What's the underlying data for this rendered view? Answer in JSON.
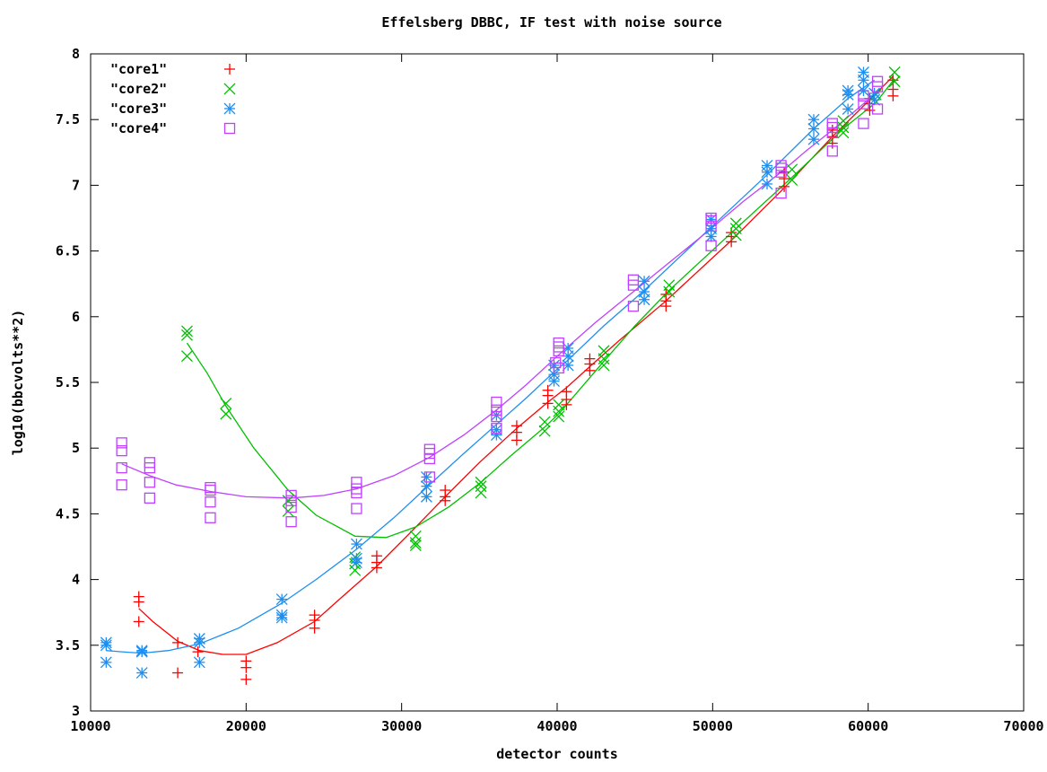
{
  "chart_data": {
    "type": "scatter",
    "title": "Effelsberg DBBC, IF test with noise source",
    "xlabel": "detector counts",
    "ylabel": "log10(bbcvolts**2)",
    "xlim": [
      10000,
      70000
    ],
    "ylim": [
      3,
      8
    ],
    "x_ticks": [
      "10000",
      "20000",
      "30000",
      "40000",
      "50000",
      "60000",
      "70000"
    ],
    "y_ticks": [
      "3",
      "3.5",
      "4",
      "4.5",
      "5",
      "5.5",
      "6",
      "6.5",
      "7",
      "7.5",
      "8"
    ],
    "legend_position": "top-left",
    "series": [
      {
        "name": "\"core1\"",
        "color": "#ff0000",
        "marker": "plus",
        "points": [
          [
            13100,
            3.87
          ],
          [
            13100,
            3.83
          ],
          [
            13100,
            3.68
          ],
          [
            15600,
            3.52
          ],
          [
            15600,
            3.29
          ],
          [
            16900,
            3.45
          ],
          [
            20000,
            3.38
          ],
          [
            20000,
            3.33
          ],
          [
            20000,
            3.24
          ],
          [
            24400,
            3.73
          ],
          [
            24400,
            3.69
          ],
          [
            24400,
            3.63
          ],
          [
            28400,
            4.18
          ],
          [
            28400,
            4.13
          ],
          [
            28400,
            4.09
          ],
          [
            32800,
            4.68
          ],
          [
            32800,
            4.63
          ],
          [
            32800,
            4.6
          ],
          [
            37400,
            5.17
          ],
          [
            37400,
            5.12
          ],
          [
            37400,
            5.06
          ],
          [
            39400,
            5.44
          ],
          [
            39400,
            5.4
          ],
          [
            39400,
            5.34
          ],
          [
            40600,
            5.43
          ],
          [
            40600,
            5.37
          ],
          [
            40600,
            5.33
          ],
          [
            42100,
            5.68
          ],
          [
            42100,
            5.64
          ],
          [
            42100,
            5.59
          ],
          [
            47000,
            6.17
          ],
          [
            47000,
            6.12
          ],
          [
            47000,
            6.08
          ],
          [
            51200,
            6.64
          ],
          [
            51200,
            6.61
          ],
          [
            51200,
            6.57
          ],
          [
            54600,
            7.1
          ],
          [
            54600,
            7.05
          ],
          [
            54600,
            6.99
          ],
          [
            57700,
            7.42
          ],
          [
            57700,
            7.37
          ],
          [
            57700,
            7.32
          ],
          [
            60100,
            7.66
          ],
          [
            60100,
            7.62
          ],
          [
            60100,
            7.57
          ],
          [
            61600,
            7.8
          ],
          [
            61600,
            7.73
          ],
          [
            61600,
            7.68
          ]
        ],
        "curve": [
          [
            13100,
            3.78
          ],
          [
            14000,
            3.68
          ],
          [
            15600,
            3.53
          ],
          [
            17000,
            3.46
          ],
          [
            18500,
            3.43
          ],
          [
            20000,
            3.43
          ],
          [
            22000,
            3.52
          ],
          [
            24400,
            3.68
          ],
          [
            26000,
            3.85
          ],
          [
            28400,
            4.1
          ],
          [
            30500,
            4.35
          ],
          [
            32800,
            4.63
          ],
          [
            35000,
            4.89
          ],
          [
            37400,
            5.15
          ],
          [
            39400,
            5.35
          ],
          [
            40600,
            5.46
          ],
          [
            42100,
            5.62
          ],
          [
            44000,
            5.82
          ],
          [
            47000,
            6.12
          ],
          [
            51200,
            6.58
          ],
          [
            54600,
            6.98
          ],
          [
            57700,
            7.37
          ],
          [
            60100,
            7.65
          ],
          [
            61600,
            7.83
          ]
        ]
      },
      {
        "name": "\"core2\"",
        "color": "#00c000",
        "marker": "cross",
        "points": [
          [
            16200,
            5.89
          ],
          [
            16200,
            5.86
          ],
          [
            16200,
            5.7
          ],
          [
            18700,
            5.34
          ],
          [
            18700,
            5.26
          ],
          [
            22700,
            4.6
          ],
          [
            22700,
            4.52
          ],
          [
            27000,
            4.17
          ],
          [
            27000,
            4.12
          ],
          [
            27000,
            4.07
          ],
          [
            30900,
            4.33
          ],
          [
            30900,
            4.28
          ],
          [
            30900,
            4.26
          ],
          [
            35100,
            4.74
          ],
          [
            35100,
            4.71
          ],
          [
            35100,
            4.66
          ],
          [
            39200,
            5.2
          ],
          [
            39200,
            5.13
          ],
          [
            40100,
            5.33
          ],
          [
            40100,
            5.28
          ],
          [
            40100,
            5.24
          ],
          [
            43000,
            5.74
          ],
          [
            43000,
            5.68
          ],
          [
            43000,
            5.63
          ],
          [
            47200,
            6.24
          ],
          [
            47200,
            6.19
          ],
          [
            51500,
            6.71
          ],
          [
            51500,
            6.67
          ],
          [
            51500,
            6.62
          ],
          [
            55100,
            7.12
          ],
          [
            55100,
            7.04
          ],
          [
            58400,
            7.49
          ],
          [
            58400,
            7.44
          ],
          [
            58400,
            7.4
          ],
          [
            61700,
            7.86
          ],
          [
            61700,
            7.79
          ],
          [
            60500,
            7.69
          ]
        ],
        "curve": [
          [
            16200,
            5.8
          ],
          [
            17500,
            5.57
          ],
          [
            18700,
            5.32
          ],
          [
            20500,
            5.0
          ],
          [
            22700,
            4.68
          ],
          [
            24500,
            4.49
          ],
          [
            27000,
            4.33
          ],
          [
            29000,
            4.32
          ],
          [
            30900,
            4.4
          ],
          [
            33000,
            4.55
          ],
          [
            35100,
            4.74
          ],
          [
            37000,
            4.94
          ],
          [
            39200,
            5.16
          ],
          [
            40100,
            5.26
          ],
          [
            43000,
            5.66
          ],
          [
            45000,
            5.93
          ],
          [
            47200,
            6.2
          ],
          [
            51500,
            6.67
          ],
          [
            55100,
            7.06
          ],
          [
            58400,
            7.43
          ],
          [
            60500,
            7.63
          ],
          [
            61700,
            7.81
          ]
        ]
      },
      {
        "name": "\"core3\"",
        "color": "#1e8ff0",
        "marker": "star",
        "points": [
          [
            11000,
            3.52
          ],
          [
            11000,
            3.5
          ],
          [
            11000,
            3.37
          ],
          [
            13300,
            3.46
          ],
          [
            13300,
            3.45
          ],
          [
            13300,
            3.29
          ],
          [
            17000,
            3.55
          ],
          [
            17000,
            3.52
          ],
          [
            17000,
            3.37
          ],
          [
            22300,
            3.85
          ],
          [
            22300,
            3.73
          ],
          [
            22300,
            3.71
          ],
          [
            27100,
            4.27
          ],
          [
            27100,
            4.16
          ],
          [
            27100,
            4.13
          ],
          [
            31600,
            4.78
          ],
          [
            31600,
            4.71
          ],
          [
            31600,
            4.63
          ],
          [
            36100,
            5.25
          ],
          [
            36100,
            5.14
          ],
          [
            36100,
            5.1
          ],
          [
            39800,
            5.63
          ],
          [
            39800,
            5.56
          ],
          [
            39800,
            5.51
          ],
          [
            40700,
            5.76
          ],
          [
            40700,
            5.7
          ],
          [
            40700,
            5.63
          ],
          [
            45600,
            6.27
          ],
          [
            45600,
            6.19
          ],
          [
            45600,
            6.13
          ],
          [
            49900,
            6.74
          ],
          [
            49900,
            6.67
          ],
          [
            49900,
            6.61
          ],
          [
            53500,
            7.15
          ],
          [
            53500,
            7.1
          ],
          [
            53500,
            7.01
          ],
          [
            56500,
            7.5
          ],
          [
            56500,
            7.43
          ],
          [
            56500,
            7.35
          ],
          [
            58700,
            7.72
          ],
          [
            58700,
            7.69
          ],
          [
            58700,
            7.58
          ],
          [
            59700,
            7.86
          ],
          [
            59700,
            7.8
          ],
          [
            59700,
            7.72
          ],
          [
            60400,
            7.7
          ],
          [
            60400,
            7.65
          ]
        ],
        "curve": [
          [
            11000,
            3.46
          ],
          [
            12000,
            3.45
          ],
          [
            13300,
            3.44
          ],
          [
            15000,
            3.46
          ],
          [
            17000,
            3.51
          ],
          [
            19500,
            3.63
          ],
          [
            22300,
            3.82
          ],
          [
            24500,
            4.0
          ],
          [
            27100,
            4.23
          ],
          [
            29500,
            4.47
          ],
          [
            31600,
            4.7
          ],
          [
            34000,
            4.96
          ],
          [
            36100,
            5.18
          ],
          [
            38000,
            5.38
          ],
          [
            39800,
            5.58
          ],
          [
            40700,
            5.67
          ],
          [
            43000,
            5.93
          ],
          [
            45600,
            6.2
          ],
          [
            49900,
            6.68
          ],
          [
            53500,
            7.08
          ],
          [
            56500,
            7.43
          ],
          [
            58700,
            7.66
          ],
          [
            60400,
            7.8
          ]
        ]
      },
      {
        "name": "\"core4\"",
        "color": "#c040ff",
        "marker": "square",
        "points": [
          [
            12000,
            5.04
          ],
          [
            12000,
            4.98
          ],
          [
            12000,
            4.85
          ],
          [
            12000,
            4.72
          ],
          [
            13800,
            4.89
          ],
          [
            13800,
            4.85
          ],
          [
            13800,
            4.74
          ],
          [
            13800,
            4.62
          ],
          [
            17700,
            4.7
          ],
          [
            17700,
            4.68
          ],
          [
            17700,
            4.59
          ],
          [
            17700,
            4.47
          ],
          [
            22900,
            4.64
          ],
          [
            22900,
            4.6
          ],
          [
            22900,
            4.55
          ],
          [
            22900,
            4.44
          ],
          [
            27100,
            4.74
          ],
          [
            27100,
            4.69
          ],
          [
            27100,
            4.66
          ],
          [
            27100,
            4.54
          ],
          [
            31800,
            4.99
          ],
          [
            31800,
            4.96
          ],
          [
            31800,
            4.92
          ],
          [
            31800,
            4.78
          ],
          [
            36100,
            5.35
          ],
          [
            36100,
            5.29
          ],
          [
            36100,
            5.24
          ],
          [
            36100,
            5.15
          ],
          [
            40100,
            5.8
          ],
          [
            40100,
            5.77
          ],
          [
            40100,
            5.74
          ],
          [
            40100,
            5.61
          ],
          [
            39900,
            5.65
          ],
          [
            44900,
            6.28
          ],
          [
            44900,
            6.24
          ],
          [
            44900,
            6.08
          ],
          [
            49900,
            6.75
          ],
          [
            49900,
            6.73
          ],
          [
            49900,
            6.69
          ],
          [
            49900,
            6.54
          ],
          [
            54400,
            7.15
          ],
          [
            54400,
            7.13
          ],
          [
            54400,
            7.1
          ],
          [
            54400,
            6.94
          ],
          [
            57700,
            7.47
          ],
          [
            57700,
            7.44
          ],
          [
            57700,
            7.4
          ],
          [
            57700,
            7.26
          ],
          [
            59700,
            7.68
          ],
          [
            59700,
            7.62
          ],
          [
            59700,
            7.47
          ],
          [
            60600,
            7.79
          ],
          [
            60600,
            7.75
          ],
          [
            60600,
            7.58
          ]
        ],
        "curve": [
          [
            12000,
            4.88
          ],
          [
            13800,
            4.79
          ],
          [
            15500,
            4.72
          ],
          [
            17700,
            4.67
          ],
          [
            20000,
            4.63
          ],
          [
            22900,
            4.62
          ],
          [
            25000,
            4.64
          ],
          [
            27100,
            4.69
          ],
          [
            29500,
            4.79
          ],
          [
            31800,
            4.93
          ],
          [
            34000,
            5.1
          ],
          [
            36100,
            5.29
          ],
          [
            38000,
            5.48
          ],
          [
            40100,
            5.71
          ],
          [
            42500,
            5.96
          ],
          [
            44900,
            6.19
          ],
          [
            47500,
            6.44
          ],
          [
            49900,
            6.67
          ],
          [
            52000,
            6.88
          ],
          [
            54400,
            7.1
          ],
          [
            56000,
            7.26
          ],
          [
            57700,
            7.42
          ],
          [
            59700,
            7.62
          ],
          [
            60600,
            7.72
          ]
        ]
      }
    ]
  }
}
